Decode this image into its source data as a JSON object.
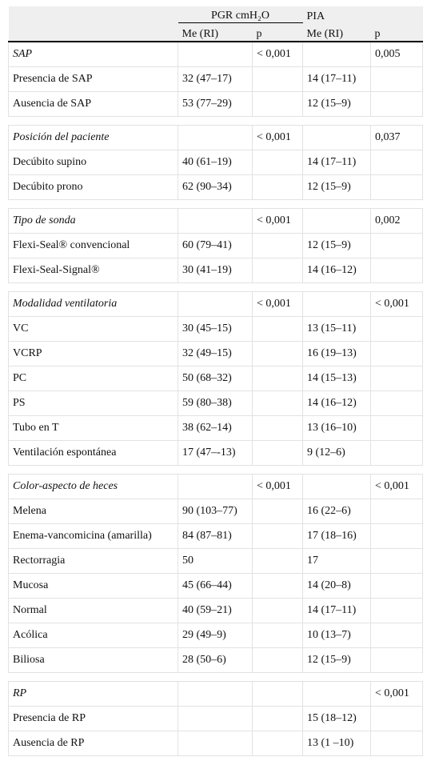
{
  "header": {
    "pgr": "PGR cmH₂O",
    "pia": "PIA",
    "me_pgr": "Me (RI)",
    "p_pgr": "p",
    "me_pia": "Me (RI)",
    "p_pia": "p"
  },
  "groups": [
    {
      "title": "SAP",
      "p_pgr": "< 0,001",
      "p_pia": "0,005",
      "rows": [
        [
          "Presencia de SAP",
          "32 (47–17)",
          "14 (17–11)"
        ],
        [
          "Ausencia de SAP",
          "53 (77–29)",
          "12 (15–9)"
        ]
      ]
    },
    {
      "title": "Posición del paciente",
      "p_pgr": "< 0,001",
      "p_pia": "0,037",
      "rows": [
        [
          "Decúbito supino",
          "40 (61–19)",
          "14 (17–11)"
        ],
        [
          "Decúbito prono",
          "62 (90–34)",
          "12 (15–9)"
        ]
      ]
    },
    {
      "title": "Tipo de sonda",
      "p_pgr": "< 0,001",
      "p_pia": "0,002",
      "rows": [
        [
          "Flexi-Seal® convencional",
          "60 (79–41)",
          "12 (15–9)"
        ],
        [
          "Flexi-Seal-Signal®",
          "30 (41–19)",
          "14 (16–12)"
        ]
      ]
    },
    {
      "title": "Modalidad ventilatoria",
      "p_pgr": "< 0,001",
      "p_pia": "< 0,001",
      "rows": [
        [
          "VC",
          "30 (45–15)",
          "13 (15–11)"
        ],
        [
          "VCRP",
          "32 (49–15)",
          "16 (19–13)"
        ],
        [
          "PC",
          "50 (68–32)",
          "14 (15–13)"
        ],
        [
          "PS",
          "59 (80–38)",
          "14 (16–12)"
        ],
        [
          "Tubo en T",
          "38 (62–14)",
          "13 (16–10)"
        ],
        [
          "Ventilación espontánea",
          "17 (47–-13)",
          "9 (12–6)"
        ]
      ]
    },
    {
      "title": "Color-aspecto de heces",
      "p_pgr": "< 0,001",
      "p_pia": "< 0,001",
      "rows": [
        [
          "Melena",
          "90 (103–77)",
          "16 (22–6)"
        ],
        [
          "Enema-vancomicina (amarilla)",
          "84 (87–81)",
          "17 (18–16)"
        ],
        [
          "Rectorragia",
          "50",
          "17"
        ],
        [
          "Mucosa",
          "45 (66–44)",
          "14 (20–8)"
        ],
        [
          "Normal",
          "40 (59–21)",
          "14 (17–11)"
        ],
        [
          "Acólica",
          "29 (49–9)",
          "10 (13–7)"
        ],
        [
          "Biliosa",
          "28 (50–6)",
          "12 (15–9)"
        ]
      ]
    },
    {
      "title": "RP",
      "p_pgr": null,
      "p_pia": "< 0,001",
      "rows": [
        [
          "Presencia de RP",
          null,
          "15 (18–12)"
        ],
        [
          "Ausencia de RP",
          null,
          "13 (1 –10)"
        ]
      ]
    }
  ]
}
